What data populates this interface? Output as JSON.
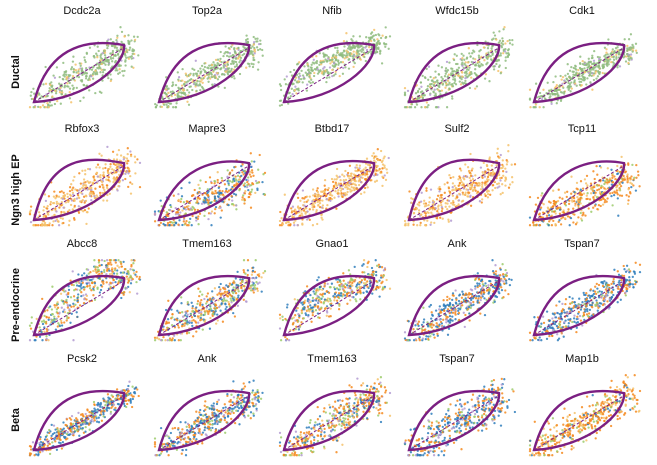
{
  "chart_data": {
    "type": "scatter",
    "title": "",
    "description_axes": "spliced (x) vs unspliced (y) phase portraits, axes hidden",
    "colors": {
      "ductal": "#8fbc7f",
      "ngn3_low": "#f5c26b",
      "ngn3_high": "#f58a1e",
      "pre_endocrine": "#9ccb6b",
      "beta": "#2f7ebc",
      "alpha": "#b39bd1",
      "fit_curve": "#7b1f82"
    },
    "rows": [
      {
        "label": "Ductal",
        "panels": [
          {
            "gene": "Dcdc2a",
            "dominant": "ductal",
            "shape": "loop",
            "spread": 0.28
          },
          {
            "gene": "Top2a",
            "dominant": "ductal",
            "shape": "loop",
            "spread": 0.25
          },
          {
            "gene": "Nfib",
            "dominant": "ductal",
            "shape": "curve",
            "spread": 0.22
          },
          {
            "gene": "Wfdc15b",
            "dominant": "ductal",
            "shape": "loop",
            "spread": 0.3
          },
          {
            "gene": "Cdk1",
            "dominant": "ductal",
            "shape": "loop",
            "spread": 0.2
          }
        ]
      },
      {
        "label": "Ngn3 high EP",
        "panels": [
          {
            "gene": "Rbfox3",
            "dominant": "ngn3_low",
            "shape": "wide",
            "spread": 0.3
          },
          {
            "gene": "Mapre3",
            "dominant": "mix",
            "shape": "low",
            "spread": 0.3
          },
          {
            "gene": "Btbd17",
            "dominant": "ngn3_low",
            "shape": "loop",
            "spread": 0.25
          },
          {
            "gene": "Sulf2",
            "dominant": "ngn3_low",
            "shape": "wide",
            "spread": 0.3
          },
          {
            "gene": "Tcp11",
            "dominant": "ngn3_high",
            "shape": "low",
            "spread": 0.3
          }
        ]
      },
      {
        "label": "Pre-endocrine",
        "panels": [
          {
            "gene": "Abcc8",
            "dominant": "mix",
            "shape": "hook",
            "spread": 0.28
          },
          {
            "gene": "Tmem163",
            "dominant": "mix",
            "shape": "loop",
            "spread": 0.28
          },
          {
            "gene": "Gnao1",
            "dominant": "mix",
            "shape": "curve",
            "spread": 0.26
          },
          {
            "gene": "Ank",
            "dominant": "beta",
            "shape": "loop",
            "spread": 0.25
          },
          {
            "gene": "Tspan7",
            "dominant": "beta",
            "shape": "loop",
            "spread": 0.25
          }
        ]
      },
      {
        "label": "Beta",
        "panels": [
          {
            "gene": "Pcsk2",
            "dominant": "beta",
            "shape": "line",
            "spread": 0.15
          },
          {
            "gene": "Ank",
            "dominant": "beta",
            "shape": "loop",
            "spread": 0.25
          },
          {
            "gene": "Tmem163",
            "dominant": "mix",
            "shape": "loop",
            "spread": 0.28
          },
          {
            "gene": "Tspan7",
            "dominant": "beta",
            "shape": "loop",
            "spread": 0.3
          },
          {
            "gene": "Map1b",
            "dominant": "ngn3_high",
            "shape": "loop",
            "spread": 0.28
          }
        ]
      }
    ]
  }
}
